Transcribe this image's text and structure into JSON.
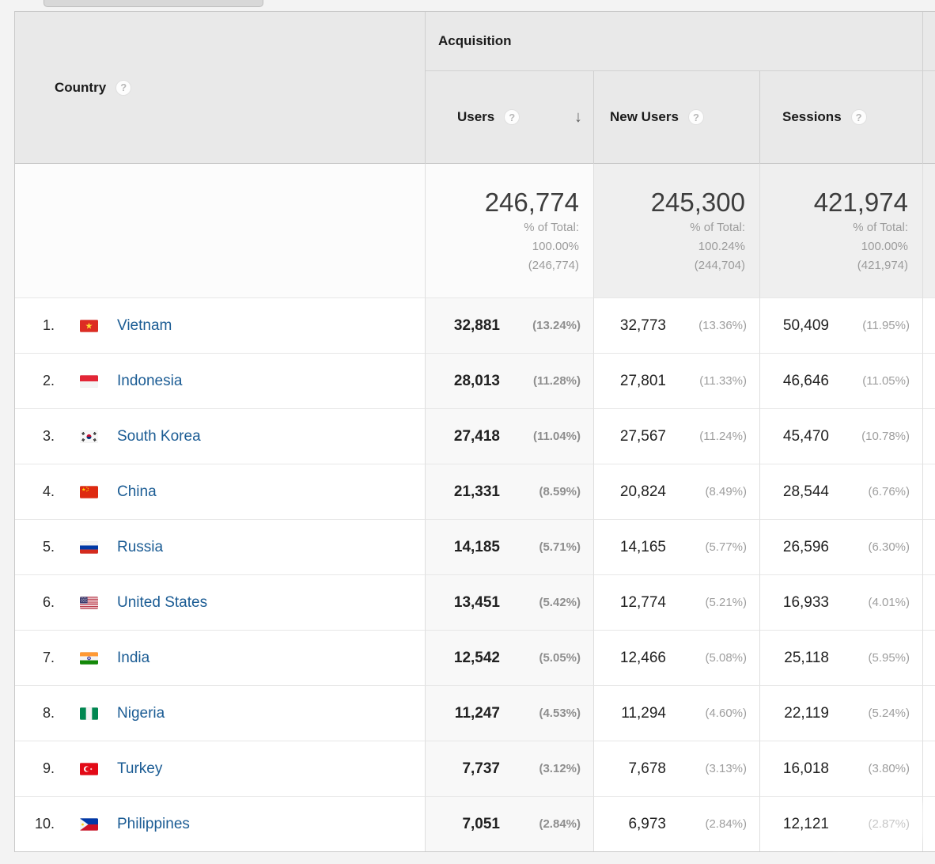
{
  "icons": {
    "help": "?",
    "sort_desc": "↓"
  },
  "header": {
    "country_label": "Country",
    "group_label": "Acquisition",
    "users_label": "Users",
    "new_users_label": "New Users",
    "sessions_label": "Sessions"
  },
  "summary": {
    "users": {
      "value": "246,774",
      "line1": "% of Total:",
      "line2": "100.00%",
      "line3": "(246,774)"
    },
    "new_users": {
      "value": "245,300",
      "line1": "% of Total:",
      "line2": "100.24%",
      "line3": "(244,704)"
    },
    "sessions": {
      "value": "421,974",
      "line1": "% of Total:",
      "line2": "100.00%",
      "line3": "(421,974)"
    }
  },
  "rows": [
    {
      "rank": "1.",
      "country": "Vietnam",
      "users": "32,881",
      "users_pct": "(13.24%)",
      "new_users": "32,773",
      "new_users_pct": "(13.36%)",
      "sessions": "50,409",
      "sessions_pct": "(11.95%)"
    },
    {
      "rank": "2.",
      "country": "Indonesia",
      "users": "28,013",
      "users_pct": "(11.28%)",
      "new_users": "27,801",
      "new_users_pct": "(11.33%)",
      "sessions": "46,646",
      "sessions_pct": "(11.05%)"
    },
    {
      "rank": "3.",
      "country": "South Korea",
      "users": "27,418",
      "users_pct": "(11.04%)",
      "new_users": "27,567",
      "new_users_pct": "(11.24%)",
      "sessions": "45,470",
      "sessions_pct": "(10.78%)"
    },
    {
      "rank": "4.",
      "country": "China",
      "users": "21,331",
      "users_pct": "(8.59%)",
      "new_users": "20,824",
      "new_users_pct": "(8.49%)",
      "sessions": "28,544",
      "sessions_pct": "(6.76%)"
    },
    {
      "rank": "5.",
      "country": "Russia",
      "users": "14,185",
      "users_pct": "(5.71%)",
      "new_users": "14,165",
      "new_users_pct": "(5.77%)",
      "sessions": "26,596",
      "sessions_pct": "(6.30%)"
    },
    {
      "rank": "6.",
      "country": "United States",
      "users": "13,451",
      "users_pct": "(5.42%)",
      "new_users": "12,774",
      "new_users_pct": "(5.21%)",
      "sessions": "16,933",
      "sessions_pct": "(4.01%)"
    },
    {
      "rank": "7.",
      "country": "India",
      "users": "12,542",
      "users_pct": "(5.05%)",
      "new_users": "12,466",
      "new_users_pct": "(5.08%)",
      "sessions": "25,118",
      "sessions_pct": "(5.95%)"
    },
    {
      "rank": "8.",
      "country": "Nigeria",
      "users": "11,247",
      "users_pct": "(4.53%)",
      "new_users": "11,294",
      "new_users_pct": "(4.60%)",
      "sessions": "22,119",
      "sessions_pct": "(5.24%)"
    },
    {
      "rank": "9.",
      "country": "Turkey",
      "users": "7,737",
      "users_pct": "(3.12%)",
      "new_users": "7,678",
      "new_users_pct": "(3.13%)",
      "sessions": "16,018",
      "sessions_pct": "(3.80%)"
    },
    {
      "rank": "10.",
      "country": "Philippines",
      "users": "7,051",
      "users_pct": "(2.84%)",
      "new_users": "6,973",
      "new_users_pct": "(2.84%)",
      "sessions": "12,121",
      "sessions_pct": "(2.87%)"
    }
  ]
}
